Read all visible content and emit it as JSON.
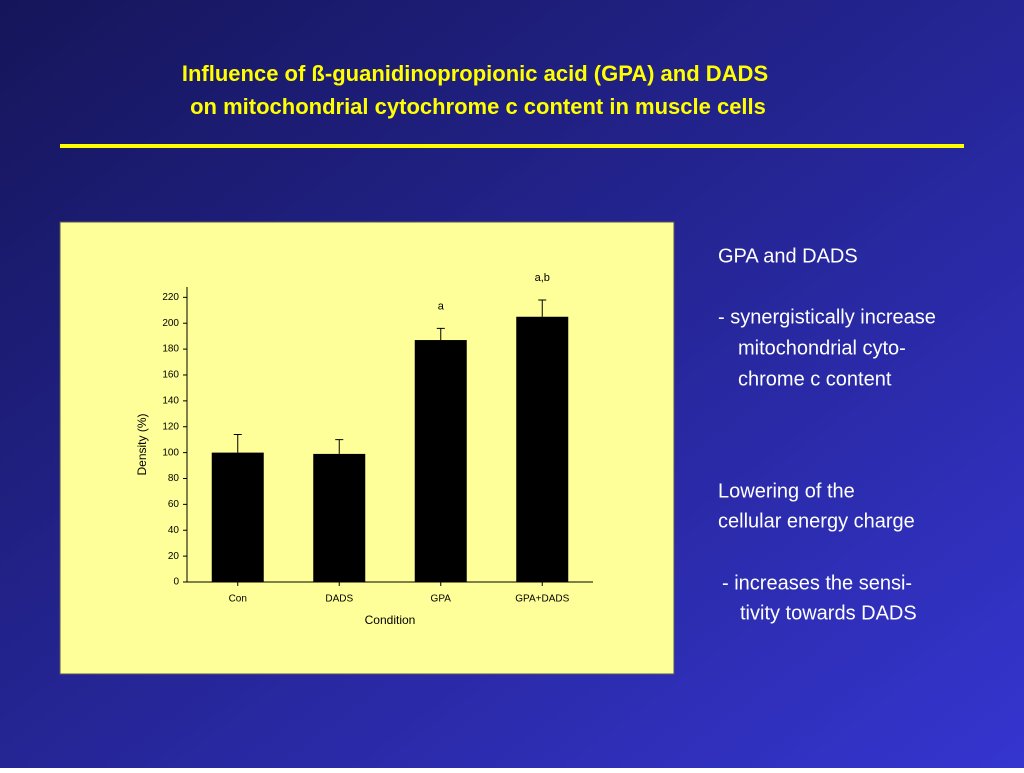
{
  "slide": {
    "title": [
      "Influence of ß-guanidinopropionic acid (GPA) and DADS",
      "on mitochondrial cytochrome c content in muscle cells"
    ],
    "text": [
      "GPA and DADS",
      "-  synergistically increase",
      "mitochondrial cyto-",
      "chrome c content",
      "Lowering of the",
      "cellular energy charge",
      "-  increases the sensi-",
      "tivity towards DADS"
    ]
  },
  "chart_data": {
    "type": "bar",
    "x_label": "Condition",
    "y_label": "Density (%)",
    "categories": [
      "Con",
      "DADS",
      "GPA",
      "GPA+DADS"
    ],
    "values": [
      100,
      99,
      187,
      205
    ],
    "errors": [
      14,
      11,
      9,
      13
    ],
    "bar_labels": [
      null,
      null,
      "a",
      "a,b"
    ],
    "color": "#000000",
    "ylim": [
      0,
      228
    ],
    "yticks": [
      0,
      20,
      40,
      60,
      80,
      100,
      120,
      140,
      160,
      180,
      200,
      220
    ]
  }
}
